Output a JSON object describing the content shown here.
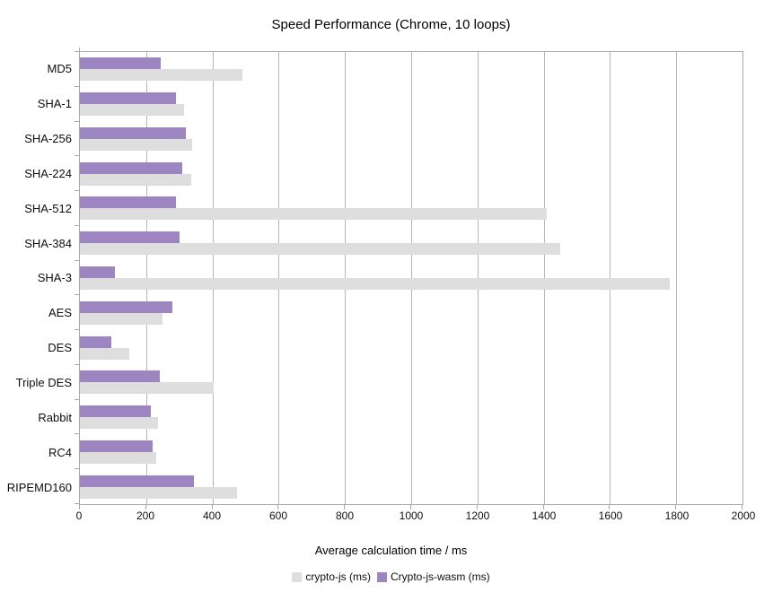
{
  "chart_data": {
    "type": "bar",
    "orientation": "horizontal",
    "title": "Speed Performance (Chrome, 10 loops)",
    "xlabel": "Average calculation time / ms",
    "categories": [
      "MD5",
      "SHA-1",
      "SHA-256",
      "SHA-224",
      "SHA-512",
      "SHA-384",
      "SHA-3",
      "AES",
      "DES",
      "Triple DES",
      "Rabbit",
      "RC4",
      "RIPEMD160"
    ],
    "series": [
      {
        "name": "crypto-js (ms)",
        "color": "#dedede",
        "values": [
          490,
          315,
          340,
          335,
          1410,
          1450,
          1780,
          250,
          150,
          405,
          235,
          230,
          475
        ]
      },
      {
        "name": "Crypto-js-wasm (ms)",
        "color": "#9c85c0",
        "values": [
          245,
          290,
          320,
          310,
          290,
          300,
          105,
          280,
          95,
          240,
          215,
          220,
          345
        ]
      }
    ],
    "xlim": [
      0,
      2000
    ],
    "xtick_step": 200,
    "xtick_labels": [
      "0",
      "200",
      "400",
      "600",
      "800",
      "1000",
      "1200",
      "1400",
      "1600",
      "1800",
      "2000"
    ],
    "grid": "vertical-only",
    "legend_position": "bottom",
    "colors": {
      "axis_line": "#a8a8a8",
      "gridline": "#b6b6b6",
      "text": "#000000",
      "background": "#ffffff"
    }
  }
}
